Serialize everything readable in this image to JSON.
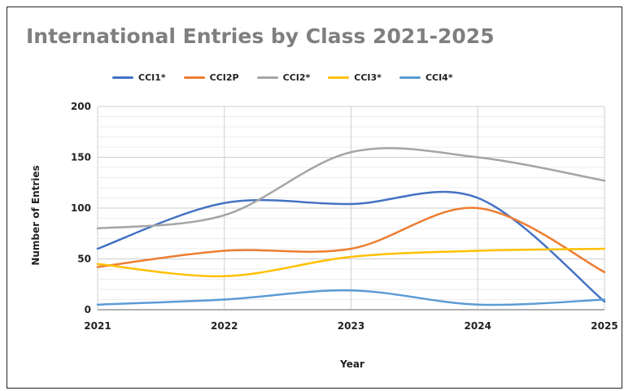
{
  "chart_data": {
    "type": "line",
    "title": "International Entries by Class 2021-2025",
    "xlabel": "Year",
    "ylabel": "Number of Entries",
    "x": [
      "2021",
      "2022",
      "2023",
      "2024",
      "2025"
    ],
    "ylim": [
      0,
      200
    ],
    "yticks": [
      0,
      50,
      100,
      150,
      200
    ],
    "grid": true,
    "legend_position": "top",
    "smooth": true,
    "series": [
      {
        "name": "CCI1*",
        "color": "#4472c4",
        "values": [
          60,
          105,
          104,
          110,
          8
        ]
      },
      {
        "name": "CCI2P",
        "color": "#ed7d31",
        "values": [
          42,
          58,
          60,
          100,
          37
        ]
      },
      {
        "name": "CCI2*",
        "color": "#a5a5a5",
        "values": [
          80,
          93,
          155,
          150,
          127
        ]
      },
      {
        "name": "CCI3*",
        "color": "#ffc000",
        "values": [
          45,
          33,
          52,
          58,
          60
        ]
      },
      {
        "name": "CCI4*",
        "color": "#5b9bd5",
        "values": [
          5,
          10,
          19,
          5,
          10
        ]
      }
    ]
  }
}
